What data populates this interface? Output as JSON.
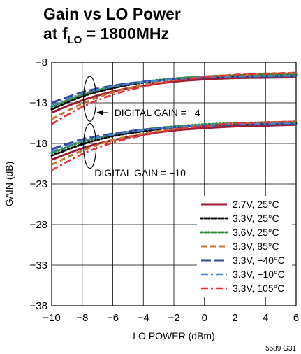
{
  "title": {
    "line1": "Gain vs LO Power",
    "line2_prefix": "at f",
    "line2_sub": "LO",
    "line2_suffix": " = 1800MHz"
  },
  "figure_id": "5589 G31",
  "chart_data": {
    "type": "line",
    "title": "Gain vs LO Power at fLO = 1800MHz",
    "xlabel": "LO POWER (dBm)",
    "ylabel": "GAIN (dB)",
    "xlim": [
      -10,
      6
    ],
    "ylim": [
      -38,
      -8
    ],
    "xticks": [
      -10,
      -8,
      -6,
      -4,
      -2,
      0,
      2,
      4,
      6
    ],
    "xtick_labels": [
      "−10",
      "−8",
      "−6",
      "−4",
      "−2",
      "0",
      "2",
      "4",
      "6"
    ],
    "yticks": [
      -38,
      -33,
      -28,
      -23,
      -18,
      -13,
      -8
    ],
    "ytick_labels": [
      "−38",
      "−33",
      "−28",
      "−23",
      "−18",
      "−13",
      "−8"
    ],
    "grid": true,
    "legend_position": "bottom-right",
    "x": [
      -10,
      -8,
      -6,
      -4,
      -2,
      0,
      2,
      4,
      6
    ],
    "annotations": [
      {
        "text": "DIGITAL GAIN = −4",
        "group": "upper"
      },
      {
        "text": "DIGITAL GAIN = −10",
        "group": "lower"
      }
    ],
    "series": [
      {
        "name": "2.7V, 25°C",
        "color": "#9b1b30",
        "dash": "solid",
        "group": "DIGITAL GAIN = −4",
        "values": [
          -14.2,
          -12.7,
          -11.6,
          -10.9,
          -10.4,
          -10.1,
          -9.95,
          -9.9,
          -9.85
        ]
      },
      {
        "name": "3.3V, 25°C",
        "color": "#000000",
        "dash": "dotted",
        "group": "DIGITAL GAIN = −4",
        "values": [
          -13.8,
          -12.2,
          -11.2,
          -10.5,
          -10.1,
          -9.85,
          -9.7,
          -9.6,
          -9.55
        ]
      },
      {
        "name": "3.6V, 25°C",
        "color": "#2e8b3a",
        "dash": "dotted",
        "group": "DIGITAL GAIN = −4",
        "values": [
          -13.5,
          -12.0,
          -11.0,
          -10.4,
          -10.0,
          -9.75,
          -9.6,
          -9.5,
          -9.45
        ]
      },
      {
        "name": "3.3V, 85°C",
        "color": "#c87533",
        "dash": "dashed",
        "group": "DIGITAL GAIN = −4",
        "values": [
          -15.0,
          -13.1,
          -11.7,
          -10.8,
          -10.2,
          -9.8,
          -9.55,
          -9.4,
          -9.3
        ]
      },
      {
        "name": "3.3V, −40°C",
        "color": "#2e4a9e",
        "dash": "longdash",
        "group": "DIGITAL GAIN = −4",
        "values": [
          -13.0,
          -11.7,
          -10.9,
          -10.4,
          -10.1,
          -9.9,
          -9.8,
          -9.75,
          -9.7
        ]
      },
      {
        "name": "3.3V, −10°C",
        "color": "#4a86c5",
        "dash": "dashdot",
        "group": "DIGITAL GAIN = −4",
        "values": [
          -13.3,
          -11.9,
          -11.0,
          -10.45,
          -10.1,
          -9.85,
          -9.75,
          -9.7,
          -9.65
        ]
      },
      {
        "name": "3.3V, 105°C",
        "color": "#e0303a",
        "dash": "dashdot",
        "group": "DIGITAL GAIN = −4",
        "values": [
          -15.6,
          -13.5,
          -12.0,
          -11.0,
          -10.3,
          -9.85,
          -9.55,
          -9.4,
          -9.3
        ]
      },
      {
        "name": "2.7V, 25°C",
        "color": "#9b1b30",
        "dash": "solid",
        "group": "DIGITAL GAIN = −10",
        "values": [
          -20.0,
          -18.6,
          -17.6,
          -16.9,
          -16.4,
          -16.1,
          -15.9,
          -15.8,
          -15.7
        ]
      },
      {
        "name": "3.3V, 25°C",
        "color": "#000000",
        "dash": "dotted",
        "group": "DIGITAL GAIN = −10",
        "values": [
          -19.5,
          -18.1,
          -17.1,
          -16.5,
          -16.05,
          -15.8,
          -15.65,
          -15.55,
          -15.5
        ]
      },
      {
        "name": "3.6V, 25°C",
        "color": "#2e8b3a",
        "dash": "dotted",
        "group": "DIGITAL GAIN = −10",
        "values": [
          -19.2,
          -17.8,
          -16.9,
          -16.3,
          -15.9,
          -15.65,
          -15.5,
          -15.4,
          -15.35
        ]
      },
      {
        "name": "3.3V, 85°C",
        "color": "#c87533",
        "dash": "dashed",
        "group": "DIGITAL GAIN = −10",
        "values": [
          -20.6,
          -18.9,
          -17.6,
          -16.8,
          -16.2,
          -15.8,
          -15.55,
          -15.4,
          -15.3
        ]
      },
      {
        "name": "3.3V, −40°C",
        "color": "#2e4a9e",
        "dash": "longdash",
        "group": "DIGITAL GAIN = −10",
        "values": [
          -18.7,
          -17.5,
          -16.8,
          -16.3,
          -16.0,
          -15.8,
          -15.7,
          -15.65,
          -15.6
        ]
      },
      {
        "name": "3.3V, −10°C",
        "color": "#4a86c5",
        "dash": "dashdot",
        "group": "DIGITAL GAIN = −10",
        "values": [
          -19.0,
          -17.7,
          -16.9,
          -16.35,
          -16.0,
          -15.75,
          -15.62,
          -15.55,
          -15.5
        ]
      },
      {
        "name": "3.3V, 105°C",
        "color": "#e0303a",
        "dash": "dashdot",
        "group": "DIGITAL GAIN = −10",
        "values": [
          -21.3,
          -19.3,
          -17.9,
          -17.0,
          -16.3,
          -15.85,
          -15.55,
          -15.4,
          -15.3
        ]
      }
    ],
    "legend": [
      {
        "label": "2.7V, 25°C",
        "color": "#9b1b30",
        "dash": "solid"
      },
      {
        "label": "3.3V, 25°C",
        "color": "#000000",
        "dash": "dotted"
      },
      {
        "label": "3.6V, 25°C",
        "color": "#2e8b3a",
        "dash": "dotted"
      },
      {
        "label": "3.3V, 85°C",
        "color": "#c87533",
        "dash": "dashed"
      },
      {
        "label": "3.3V, −40°C",
        "color": "#2e4a9e",
        "dash": "longdash"
      },
      {
        "label": "3.3V, −10°C",
        "color": "#4a86c5",
        "dash": "dashdot"
      },
      {
        "label": "3.3V, 105°C",
        "color": "#e0303a",
        "dash": "dashdot"
      }
    ]
  }
}
